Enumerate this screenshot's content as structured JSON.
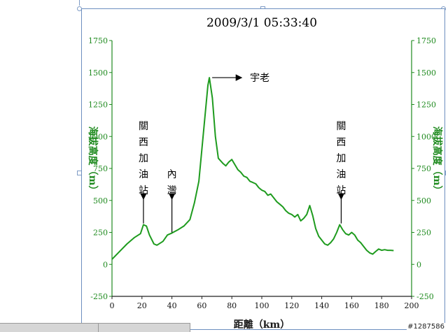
{
  "chart_data": {
    "type": "line",
    "title": "2009/3/1 05:33:40",
    "xlabel": "距離（km）",
    "ylabel_left": "海拔高度（m）",
    "ylabel_right": "海拔高度（m）",
    "xlim": [
      0,
      200
    ],
    "ylim": [
      -250,
      1750
    ],
    "xticks": [
      "0",
      "20",
      "40",
      "60",
      "80",
      "100",
      "120",
      "140",
      "160",
      "180",
      "200"
    ],
    "yticks": [
      "-250",
      "0",
      "250",
      "500",
      "750",
      "1000",
      "1250",
      "1500",
      "1750"
    ],
    "grid": false,
    "series": [
      {
        "color": "#1e9b1e",
        "points": [
          [
            0,
            40
          ],
          [
            5,
            100
          ],
          [
            10,
            160
          ],
          [
            15,
            210
          ],
          [
            19,
            240
          ],
          [
            21,
            310
          ],
          [
            23,
            300
          ],
          [
            25,
            230
          ],
          [
            28,
            160
          ],
          [
            30,
            150
          ],
          [
            34,
            180
          ],
          [
            37,
            230
          ],
          [
            40,
            245
          ],
          [
            44,
            270
          ],
          [
            48,
            300
          ],
          [
            52,
            350
          ],
          [
            55,
            480
          ],
          [
            58,
            650
          ],
          [
            60,
            900
          ],
          [
            62,
            1150
          ],
          [
            64,
            1400
          ],
          [
            65,
            1460
          ],
          [
            67,
            1300
          ],
          [
            69,
            1000
          ],
          [
            71,
            830
          ],
          [
            74,
            790
          ],
          [
            76,
            770
          ],
          [
            78,
            800
          ],
          [
            80,
            820
          ],
          [
            82,
            780
          ],
          [
            84,
            740
          ],
          [
            86,
            720
          ],
          [
            88,
            690
          ],
          [
            90,
            680
          ],
          [
            92,
            650
          ],
          [
            94,
            640
          ],
          [
            96,
            630
          ],
          [
            98,
            600
          ],
          [
            100,
            580
          ],
          [
            102,
            570
          ],
          [
            104,
            540
          ],
          [
            106,
            550
          ],
          [
            108,
            520
          ],
          [
            110,
            490
          ],
          [
            112,
            470
          ],
          [
            114,
            450
          ],
          [
            116,
            420
          ],
          [
            118,
            400
          ],
          [
            120,
            390
          ],
          [
            122,
            370
          ],
          [
            124,
            390
          ],
          [
            126,
            340
          ],
          [
            128,
            360
          ],
          [
            130,
            390
          ],
          [
            132,
            460
          ],
          [
            134,
            380
          ],
          [
            136,
            280
          ],
          [
            138,
            220
          ],
          [
            140,
            190
          ],
          [
            142,
            160
          ],
          [
            144,
            150
          ],
          [
            146,
            170
          ],
          [
            148,
            200
          ],
          [
            150,
            250
          ],
          [
            152,
            310
          ],
          [
            154,
            270
          ],
          [
            156,
            240
          ],
          [
            158,
            230
          ],
          [
            160,
            250
          ],
          [
            162,
            230
          ],
          [
            164,
            190
          ],
          [
            166,
            170
          ],
          [
            168,
            140
          ],
          [
            170,
            110
          ],
          [
            172,
            90
          ],
          [
            174,
            80
          ],
          [
            176,
            100
          ],
          [
            178,
            120
          ],
          [
            180,
            110
          ],
          [
            182,
            115
          ],
          [
            184,
            110
          ],
          [
            186,
            110
          ],
          [
            188,
            108
          ]
        ]
      }
    ],
    "annotations": [
      {
        "text": "關西加油站",
        "x": 21,
        "arrow_from": 500,
        "arrow_to": 320,
        "orientation": "vertical"
      },
      {
        "text": "內灣",
        "x": 40,
        "arrow_from": 500,
        "arrow_to": 250,
        "orientation": "vertical"
      },
      {
        "text": "宇老",
        "x": 65,
        "arrow_y": 1460,
        "orientation": "horizontal"
      },
      {
        "text": "關西加油站",
        "x": 153,
        "arrow_from": 500,
        "arrow_to": 320,
        "orientation": "vertical"
      }
    ],
    "axis_color": "#1e8a1e"
  },
  "watermark": "#1287586"
}
